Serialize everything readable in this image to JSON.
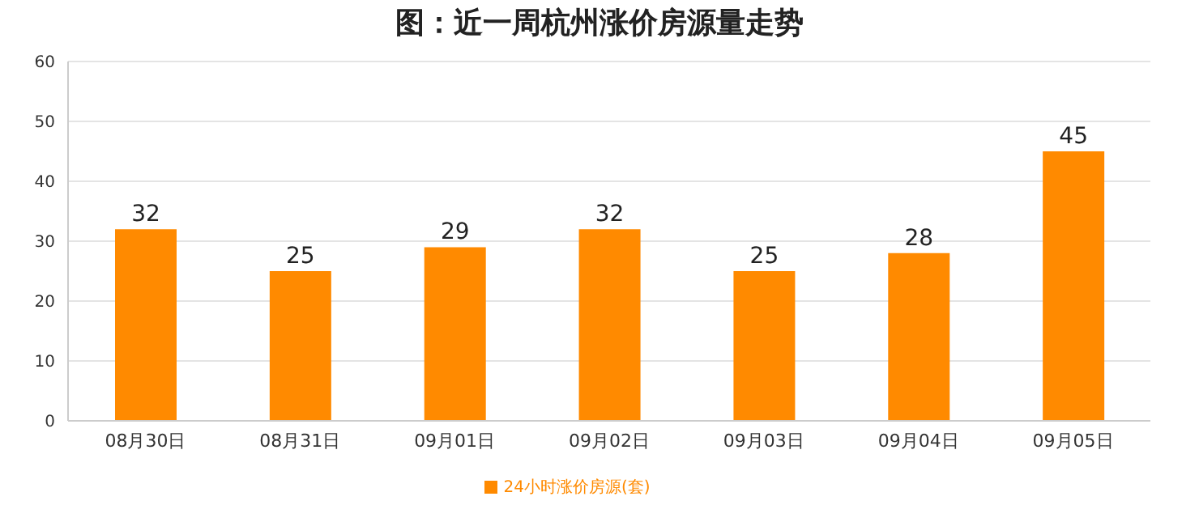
{
  "chart_data": {
    "type": "bar",
    "title": "图：近一周杭州涨价房源量走势",
    "categories": [
      "08月30日",
      "08月31日",
      "09月01日",
      "09月02日",
      "09月03日",
      "09月04日",
      "09月05日"
    ],
    "series": [
      {
        "name": "24小时涨价房源(套)",
        "color": "#ff8a00",
        "values": [
          32,
          25,
          29,
          32,
          25,
          28,
          45
        ]
      }
    ],
    "ylim": [
      0,
      60
    ],
    "yticks": [
      0,
      10,
      20,
      30,
      40,
      50,
      60
    ],
    "grid": "y",
    "legend": "bottom",
    "data_labels": true
  }
}
